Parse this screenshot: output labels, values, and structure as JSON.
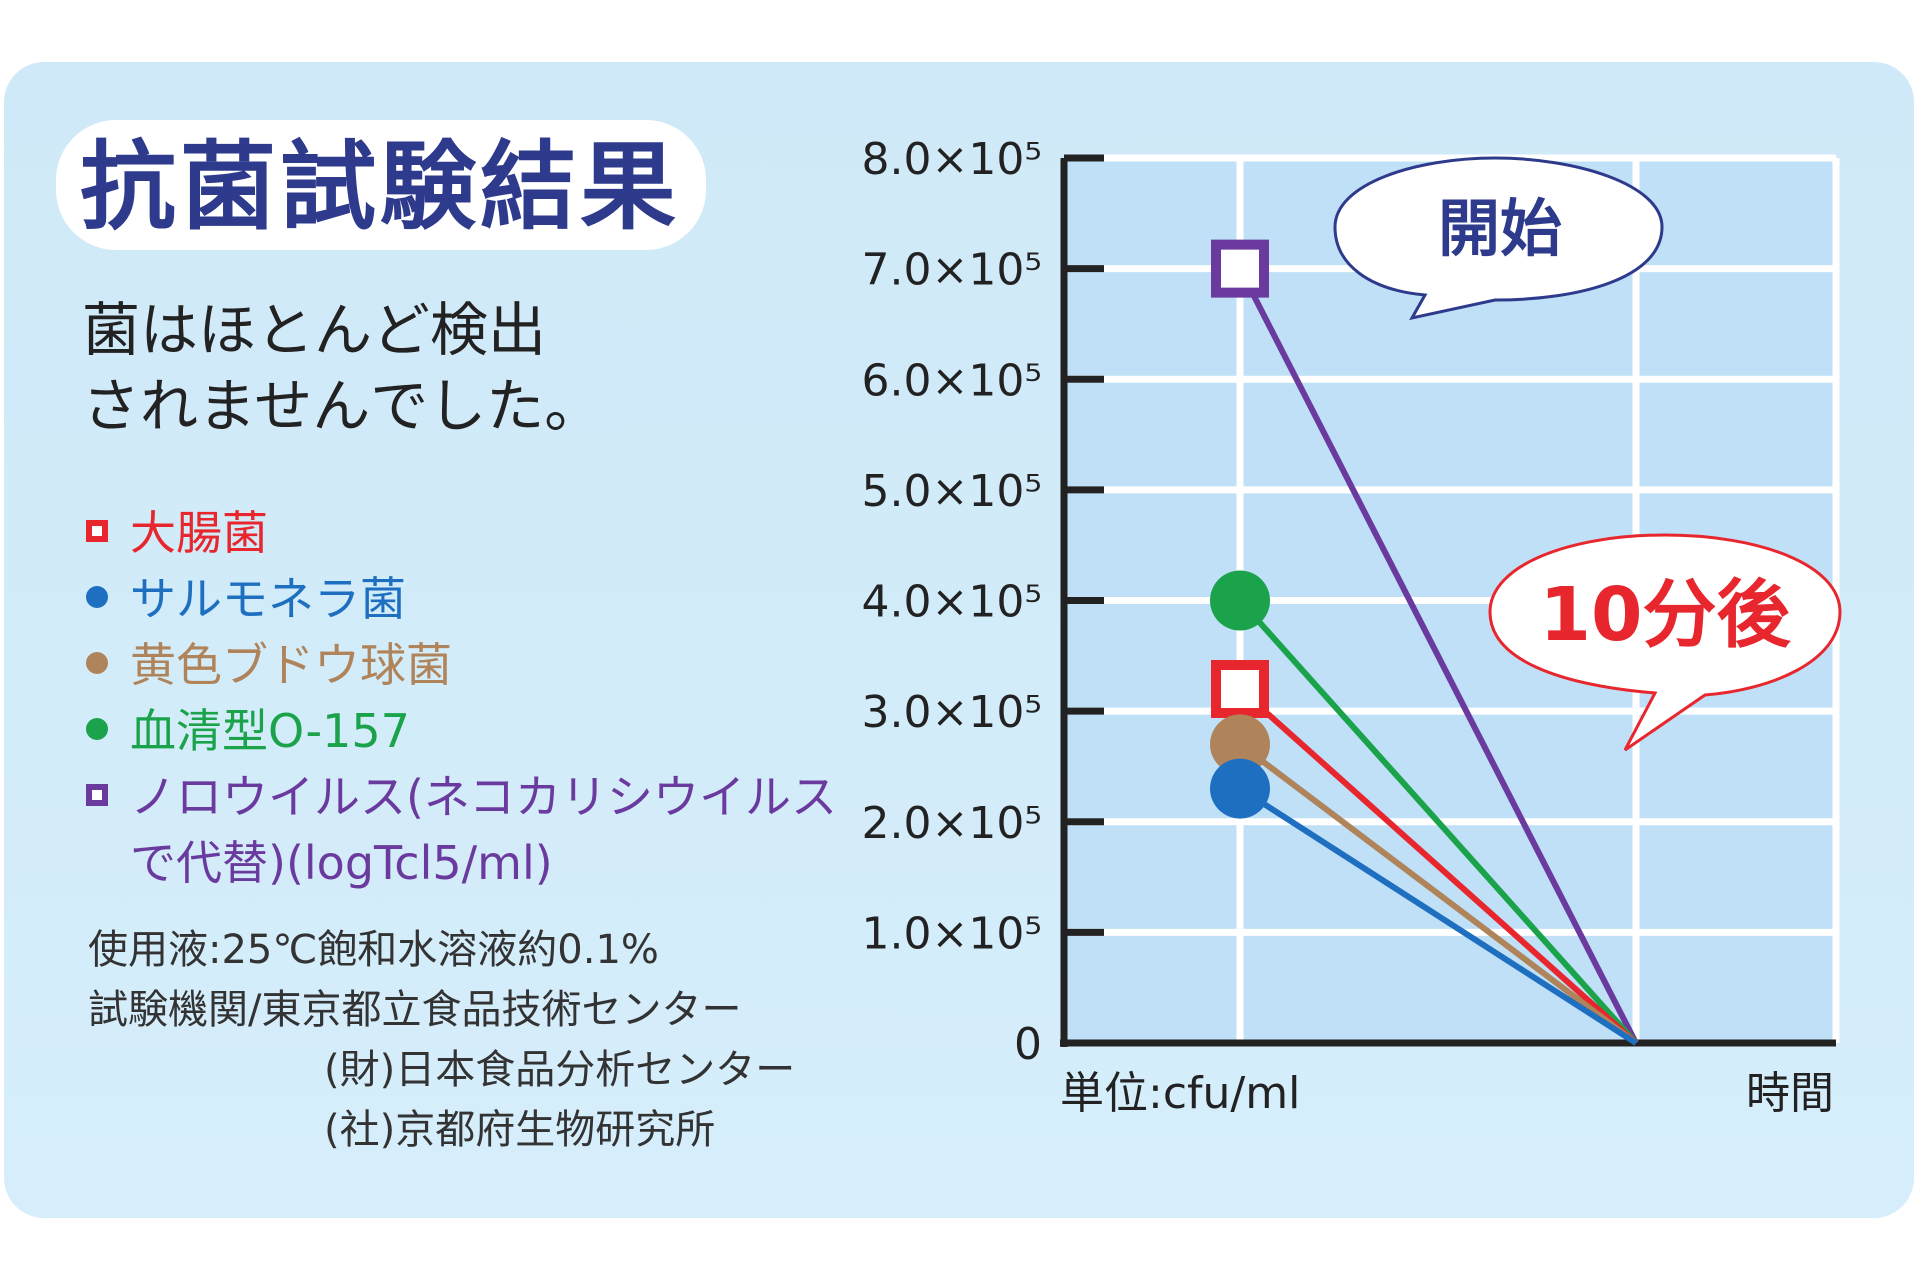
{
  "header": {
    "title": "抗菌試験結果",
    "subtitle_line1": "菌はほとんど検出",
    "subtitle_line2": "されませんでした。"
  },
  "legend": [
    {
      "name": "大腸菌",
      "marker": "square",
      "color": "#e8262d"
    },
    {
      "name": "サルモネラ菌",
      "marker": "circle",
      "color": "#1f6fc1"
    },
    {
      "name": "黄色ブドウ球菌",
      "marker": "circle",
      "color": "#b0845a"
    },
    {
      "name": "血清型O-157",
      "marker": "circle",
      "color": "#1aa34a"
    },
    {
      "name": "ノロウイルス(ネコカリシウイルスで代替)(logTcl5/ml)",
      "marker": "square",
      "color": "#6a3a9e"
    }
  ],
  "notes": {
    "solution": "使用液:25℃飽和水溶液約0.1%",
    "lab_label": "試験機関/東京都立食品技術センター",
    "lab2": "(財)日本食品分析センター",
    "lab3": "(社)京都府生物研究所"
  },
  "chart_data": {
    "type": "line",
    "x": [
      "開始",
      "10分後"
    ],
    "xlabel": "時間",
    "ylabel": "単位:cfu/ml",
    "ylim": [
      0,
      800000
    ],
    "yticks": [
      "0",
      "1.0×10⁵",
      "2.0×10⁵",
      "3.0×10⁵",
      "4.0×10⁵",
      "5.0×10⁵",
      "6.0×10⁵",
      "7.0×10⁵",
      "8.0×10⁵"
    ],
    "grid": true,
    "annotations": [
      "開始",
      "10分後"
    ],
    "series": [
      {
        "name": "大腸菌",
        "values": [
          320000,
          0
        ],
        "color": "#e8262d",
        "marker": "square"
      },
      {
        "name": "サルモネラ菌",
        "values": [
          230000,
          0
        ],
        "color": "#1f6fc1",
        "marker": "circle"
      },
      {
        "name": "黄色ブドウ球菌",
        "values": [
          270000,
          0
        ],
        "color": "#b0845a",
        "marker": "circle"
      },
      {
        "name": "血清型O-157",
        "values": [
          400000,
          0
        ],
        "color": "#1aa34a",
        "marker": "circle"
      },
      {
        "name": "ノロウイルス(ネコカリシウイルスで代替)(logTcl5/ml)",
        "values": [
          700000,
          0
        ],
        "color": "#6a3a9e",
        "marker": "square"
      }
    ]
  }
}
